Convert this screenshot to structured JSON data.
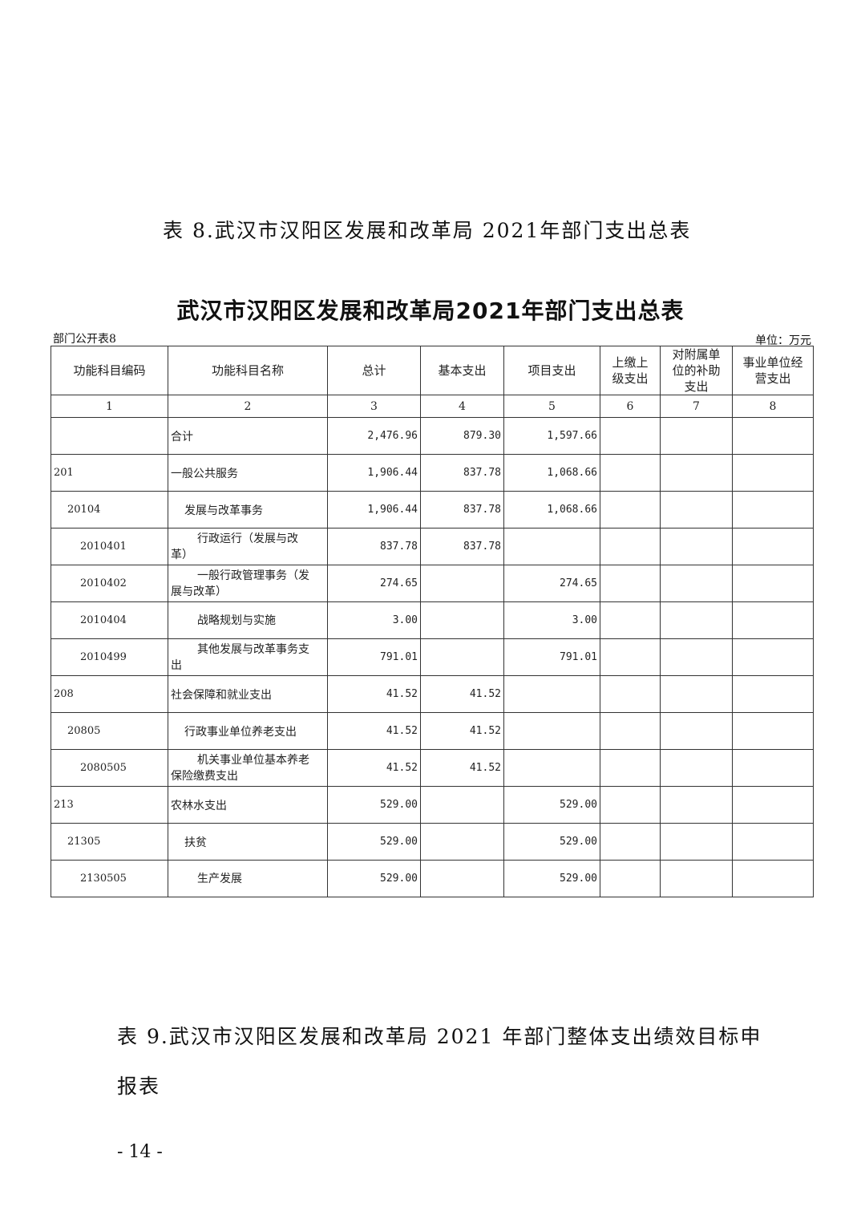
{
  "caption_8": "表 8.武汉市汉阳区发展和改革局 2021年部门支出总表",
  "table_title": "武汉市汉阳区发展和改革局2021年部门支出总表",
  "form_no": "部门公开表8",
  "unit": "单位：万元",
  "headers": [
    "功能科目编码",
    "功能科目名称",
    "总计",
    "基本支出",
    "项目支出",
    "上缴上级支出",
    "对附属单位的补助支出",
    "事业单位经营支出"
  ],
  "col_numbers": [
    "1",
    "2",
    "3",
    "4",
    "5",
    "6",
    "7",
    "8"
  ],
  "rows": [
    {
      "code": "",
      "name": "合计",
      "total": "2,476.96",
      "basic": "879.30",
      "project": "1,597.66",
      "level": 1
    },
    {
      "code": "201",
      "name": "一般公共服务",
      "total": "1,906.44",
      "basic": "837.78",
      "project": "1,068.66",
      "level": 1
    },
    {
      "code": "20104",
      "name": "发展与改革事务",
      "total": "1,906.44",
      "basic": "837.78",
      "project": "1,068.66",
      "level": 2
    },
    {
      "code": "2010401",
      "name": "行政运行（发展与改革）",
      "total": "837.78",
      "basic": "837.78",
      "project": "",
      "level": 3
    },
    {
      "code": "2010402",
      "name": "一般行政管理事务（发展与改革）",
      "total": "274.65",
      "basic": "",
      "project": "274.65",
      "level": 3
    },
    {
      "code": "2010404",
      "name": "战略规划与实施",
      "total": "3.00",
      "basic": "",
      "project": "3.00",
      "level": 3
    },
    {
      "code": "2010499",
      "name": "其他发展与改革事务支出",
      "total": "791.01",
      "basic": "",
      "project": "791.01",
      "level": 3
    },
    {
      "code": "208",
      "name": "社会保障和就业支出",
      "total": "41.52",
      "basic": "41.52",
      "project": "",
      "level": 1
    },
    {
      "code": "20805",
      "name": "行政事业单位养老支出",
      "total": "41.52",
      "basic": "41.52",
      "project": "",
      "level": 2
    },
    {
      "code": "2080505",
      "name": "机关事业单位基本养老保险缴费支出",
      "total": "41.52",
      "basic": "41.52",
      "project": "",
      "level": 3
    },
    {
      "code": "213",
      "name": "农林水支出",
      "total": "529.00",
      "basic": "",
      "project": "529.00",
      "level": 1
    },
    {
      "code": "21305",
      "name": "扶贫",
      "total": "529.00",
      "basic": "",
      "project": "529.00",
      "level": 2
    },
    {
      "code": "2130505",
      "name": "生产发展",
      "total": "529.00",
      "basic": "",
      "project": "529.00",
      "level": 3
    }
  ],
  "caption_9": "表 9.武汉市汉阳区发展和改革局 2021 年部门整体支出绩效目标申报表",
  "page_number": "- 14 -"
}
